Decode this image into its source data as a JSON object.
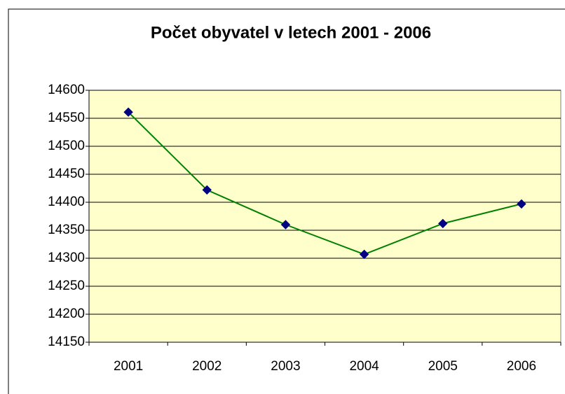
{
  "chart_data": {
    "type": "line",
    "title": "Počet obyvatel v letech 2001 - 2006",
    "categories": [
      "2001",
      "2002",
      "2003",
      "2004",
      "2005",
      "2006"
    ],
    "values": [
      14561,
      14422,
      14360,
      14307,
      14362,
      14397
    ],
    "color": "#008000",
    "marker_color": "#000080",
    "plot_background": "#ffffcc",
    "ylim": [
      14150,
      14600
    ],
    "yticks": [
      14150,
      14200,
      14250,
      14300,
      14350,
      14400,
      14450,
      14500,
      14550,
      14600
    ],
    "grid": true
  }
}
